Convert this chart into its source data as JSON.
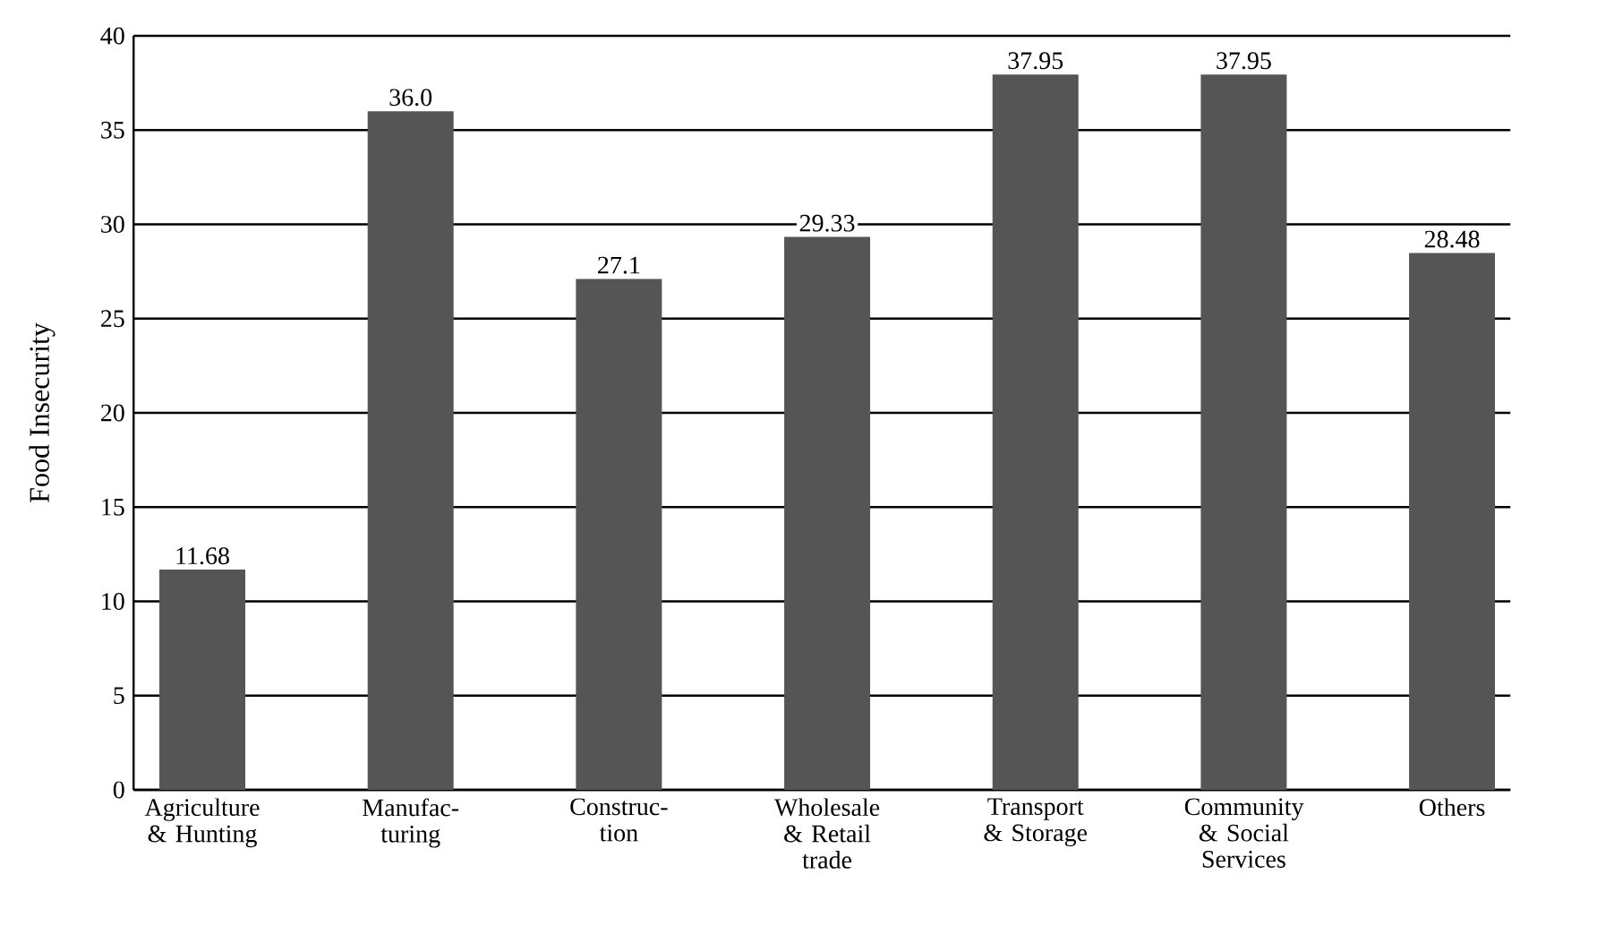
{
  "chart_data": {
    "type": "bar",
    "ylabel": "Food Insecurity",
    "categories": [
      "Agriculture & Hunting",
      "Manufac- turing",
      "Construc- tion",
      "Wholesale & Retail trade",
      "Transport & Storage",
      "Community & Social Services",
      "Others"
    ],
    "values": [
      11.68,
      36.0,
      27.1,
      29.33,
      37.95,
      37.95,
      28.48
    ],
    "value_labels": [
      "11.68",
      "36.0",
      "27.1",
      "29.33",
      "37.95",
      "37.95",
      "28.48"
    ],
    "color": "#555555",
    "ylim": [
      0,
      40
    ],
    "yticks": [
      0,
      5,
      10,
      15,
      20,
      25,
      30,
      35,
      40
    ],
    "grid": "y"
  }
}
